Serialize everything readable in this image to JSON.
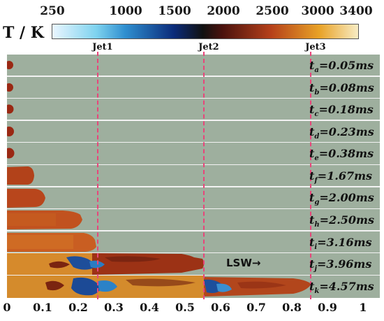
{
  "colorbar": {
    "title": "T / K",
    "ticks": [
      "250",
      "1000",
      "1500",
      "2000",
      "2500",
      "3000",
      "3400"
    ],
    "tick_values": [
      250,
      1000,
      1500,
      2000,
      2500,
      3000,
      3400
    ],
    "range": [
      250,
      3400
    ],
    "stops": [
      {
        "value": 250,
        "color": "#eaf6ff"
      },
      {
        "value": 700,
        "color": "#7fd3ef"
      },
      {
        "value": 1000,
        "color": "#2f8fd0"
      },
      {
        "value": 1500,
        "color": "#0b2b7a"
      },
      {
        "value": 1800,
        "color": "#111111"
      },
      {
        "value": 2000,
        "color": "#4a120d"
      },
      {
        "value": 2500,
        "color": "#b5401a"
      },
      {
        "value": 3000,
        "color": "#e8a227"
      },
      {
        "value": 3400,
        "color": "#f8ecc4"
      }
    ]
  },
  "jets": [
    {
      "label": "Jet1",
      "x": 0.25
    },
    {
      "label": "Jet2",
      "x": 0.55
    },
    {
      "label": "Jet3",
      "x": 0.85
    }
  ],
  "x_axis": {
    "range": [
      0,
      1
    ],
    "ticks": [
      "0",
      "0.1",
      "0.2",
      "0.3",
      "0.4",
      "0.5",
      "0.6",
      "0.7",
      "0.8",
      "0.9",
      "1"
    ],
    "tick_values": [
      0,
      0.1,
      0.2,
      0.3,
      0.4,
      0.5,
      0.6,
      0.7,
      0.8,
      0.9,
      1
    ]
  },
  "annotation": "LSW→",
  "snapshots": [
    {
      "sub": "a",
      "value": "=0.05ms",
      "front": 0.01
    },
    {
      "sub": "b",
      "value": "=0.08ms",
      "front": 0.01
    },
    {
      "sub": "c",
      "value": "=0.18ms",
      "front": 0.012
    },
    {
      "sub": "d",
      "value": "=0.23ms",
      "front": 0.013
    },
    {
      "sub": "e",
      "value": "=0.38ms",
      "front": 0.014
    },
    {
      "sub": "f",
      "value": "=1.67ms",
      "front": 0.07
    },
    {
      "sub": "g",
      "value": "=2.00ms",
      "front": 0.1
    },
    {
      "sub": "h",
      "value": "=2.50ms",
      "front": 0.2
    },
    {
      "sub": "i",
      "value": "=3.16ms",
      "front": 0.25
    },
    {
      "sub": "j",
      "value": "=3.96ms",
      "front": 0.55
    },
    {
      "sub": "k",
      "value": "=4.57ms",
      "front": 0.85
    }
  ]
}
